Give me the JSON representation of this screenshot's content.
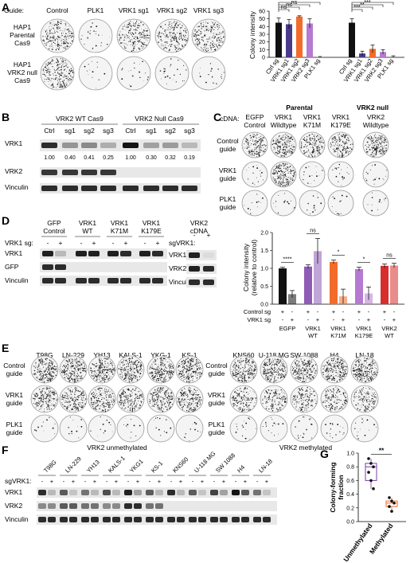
{
  "panelA": {
    "letter": "A",
    "guide_label": "Guide:",
    "columns": [
      "Control",
      "PLK1",
      "VRK1 sg1",
      "VRK1 sg2",
      "VRK1 sg3"
    ],
    "rows": [
      {
        "lines": [
          "HAP1",
          "Parental",
          "Cas9"
        ],
        "densities": [
          0.85,
          0.08,
          0.8,
          0.8,
          0.8
        ]
      },
      {
        "lines": [
          "HAP1",
          "VRK2 null",
          "Cas9"
        ],
        "densities": [
          0.85,
          0.04,
          0.06,
          0.08,
          0.05
        ]
      }
    ]
  },
  "panelA_chart": {
    "ylabel": "Colony intensity",
    "yticks": [
      "0",
      "10",
      "20",
      "30",
      "40",
      "50",
      "60"
    ],
    "group_labels": [
      "Parental",
      "VRK2 null"
    ],
    "sig": [
      "ns",
      "ns",
      "ns",
      "***",
      "***",
      "**",
      "***",
      "***"
    ]
  },
  "chart_data": [
    {
      "type": "bar",
      "ylabel": "Colony intensity",
      "ylim": [
        0,
        60
      ],
      "categories": [
        "Ctrl sg",
        "VRK1 sg1",
        "VRK1 sg2",
        "VRK2 sg3",
        "PLK1 sg"
      ],
      "series": [
        {
          "name": "Parental",
          "values": [
            45,
            43,
            53,
            44,
            0.5
          ],
          "errors": [
            6,
            6,
            1,
            6,
            0.5
          ]
        },
        {
          "name": "VRK2 null",
          "values": [
            45,
            5,
            11,
            7,
            1
          ],
          "errors": [
            5,
            3,
            5,
            3,
            1
          ]
        }
      ],
      "colors": [
        "#111111",
        "#4b3a8c",
        "#f26b2a",
        "#b57ad1",
        "#999999"
      ]
    },
    {
      "type": "bar",
      "ylabel": "Colony intensity (relative to control)",
      "ylim": [
        0,
        2.0
      ],
      "yticks": [
        "0.0",
        "0.5",
        "1.0",
        "1.5",
        "2.0"
      ],
      "categories": [
        "EGFP",
        "VRK1 WT",
        "VRK1 K71M",
        "VRK1 K179E",
        "VRK2 WT"
      ],
      "series": [
        {
          "name": "Control sg",
          "values": [
            1.0,
            1.05,
            1.18,
            0.98,
            1.07
          ],
          "errors": [
            0.03,
            0.05,
            0.05,
            0.05,
            0.05
          ]
        },
        {
          "name": "VRK1 sg",
          "values": [
            0.28,
            1.48,
            0.22,
            0.3,
            1.08
          ],
          "errors": [
            0.1,
            0.35,
            0.2,
            0.18,
            0.06
          ]
        }
      ],
      "sig": [
        "****",
        "ns",
        "*",
        "*",
        "ns"
      ],
      "colors": [
        "#111111",
        "#8e5bb5",
        "#f26b2a",
        "#b57ad1",
        "#d62d2d"
      ]
    },
    {
      "type": "scatter",
      "ylabel": "Colony-forming fraction",
      "ylim": [
        0,
        1.0
      ],
      "yticks": [
        "0.0",
        "0.2",
        "0.4",
        "0.6",
        "0.8",
        "1.0"
      ],
      "categories": [
        "Unmethylated",
        "Methylated"
      ],
      "series": [
        {
          "name": "Unmethylated",
          "values": [
            0.92,
            0.85,
            0.8,
            0.72,
            0.6,
            0.48
          ]
        },
        {
          "name": "Methylated",
          "values": [
            0.35,
            0.3,
            0.27,
            0.22,
            0.15
          ]
        }
      ],
      "sig": [
        "**"
      ]
    }
  ],
  "panelB": {
    "letter": "B",
    "group_labels": [
      "VRK2 WT Cas9",
      "VRK2 Null Cas9"
    ],
    "lanes": [
      "Ctrl",
      "sg1",
      "sg2",
      "sg3",
      "Ctrl",
      "sg1",
      "sg2",
      "sg3"
    ],
    "rows": [
      "VRK1",
      "VRK2",
      "Vinculin"
    ],
    "quant": [
      "1.00",
      "0.40",
      "0.41",
      "0.25",
      "1.00",
      "0.30",
      "0.32",
      "0.19"
    ],
    "vrk1_intensity": [
      0.9,
      0.45,
      0.5,
      0.35,
      1.0,
      0.4,
      0.42,
      0.3
    ],
    "vrk2_intensity": [
      0.85,
      0.85,
      0.85,
      0.85,
      0,
      0,
      0,
      0
    ],
    "vinc_intensity": [
      0.9,
      0.9,
      0.9,
      0.9,
      0.9,
      0.9,
      0.9,
      0.9
    ]
  },
  "panelC": {
    "letter": "C",
    "cdna_label": "cDNA:",
    "columns": [
      [
        "EGFP",
        "Control"
      ],
      [
        "VRK1",
        "Wildtype"
      ],
      [
        "VRK1",
        "K71M"
      ],
      [
        "VRK1",
        "K179E"
      ],
      [
        "VRK2",
        "Wildtype"
      ]
    ],
    "rows": [
      [
        "Control",
        "guide"
      ],
      [
        "VRK1",
        "guide"
      ],
      [
        "PLK1",
        "guide"
      ]
    ],
    "densities": [
      [
        0.6,
        0.7,
        0.6,
        0.6,
        0.7
      ],
      [
        0.05,
        0.75,
        0.05,
        0.06,
        0.05
      ],
      [
        0.03,
        0.04,
        0.03,
        0.03,
        0.04
      ]
    ]
  },
  "panelD": {
    "letter": "D",
    "groups": [
      [
        "GFP",
        "Control"
      ],
      [
        "VRK1",
        "WT"
      ],
      [
        "VRK1",
        "K71M"
      ],
      [
        "VRK1",
        "K179E"
      ]
    ],
    "sg_label": "VRK1 sg:",
    "pm": [
      "-",
      "+",
      "-",
      "+",
      "-",
      "+",
      "-",
      "+"
    ],
    "rows": [
      "VRK1",
      "GFP",
      "Vinculin"
    ],
    "right_title": [
      "VRK2",
      "cDNA"
    ],
    "right_sg_label": "sgVRK1:",
    "right_pm": [
      "-",
      "+"
    ],
    "right_rows": [
      "VRK1",
      "VRK2",
      "Vinculin"
    ],
    "legend_rows": [
      "Control sg",
      "VRK1 sg"
    ],
    "chart_sig": [
      "****",
      "ns",
      "*",
      "*",
      "ns"
    ],
    "chart_cats": [
      [
        "EGFP"
      ],
      [
        "VRK1",
        "WT"
      ],
      [
        "VRK1",
        "K71M"
      ],
      [
        "VRK1",
        "K179E"
      ],
      [
        "VRK2",
        "WT"
      ]
    ],
    "ylabel": [
      "Colony intensity",
      "(relative to control)"
    ],
    "yticks": [
      "0.0",
      "0.5",
      "1.0",
      "1.5",
      "2.0"
    ]
  },
  "panelE": {
    "letter": "E",
    "left_cells": [
      "T98G",
      "LN-229",
      "YH13",
      "KALS-1",
      "YKG-1",
      "KS-1"
    ],
    "right_cells": [
      "KNS60",
      "U-118 MG",
      "SW 1088",
      "H4",
      "LN-18"
    ],
    "rows": [
      [
        "Control",
        "guide"
      ],
      [
        "VRK1",
        "guide"
      ],
      [
        "PLK1",
        "guide"
      ]
    ],
    "left_caption": "VRK2 unmethylated",
    "right_caption": "VRK2 methylated"
  },
  "panelF": {
    "letter": "F",
    "cells": [
      "T98G",
      "LN-229",
      "YH13",
      "KALS-1",
      "YKG1",
      "KS-1",
      "KNS60",
      "U-118 MG",
      "SW 1088",
      "H4",
      "LN-18"
    ],
    "sg_label": "sgVRK1:",
    "rows": [
      "VRK1",
      "VRK2",
      "Vinculin"
    ]
  },
  "panelG": {
    "letter": "G",
    "ylabel": [
      "Colony-forming",
      "fraction"
    ],
    "yticks": [
      "0.0",
      "0.2",
      "0.4",
      "0.6",
      "0.8",
      "1.0"
    ],
    "categories": [
      "Unmethylated",
      "Methylated"
    ],
    "sig": "**"
  }
}
